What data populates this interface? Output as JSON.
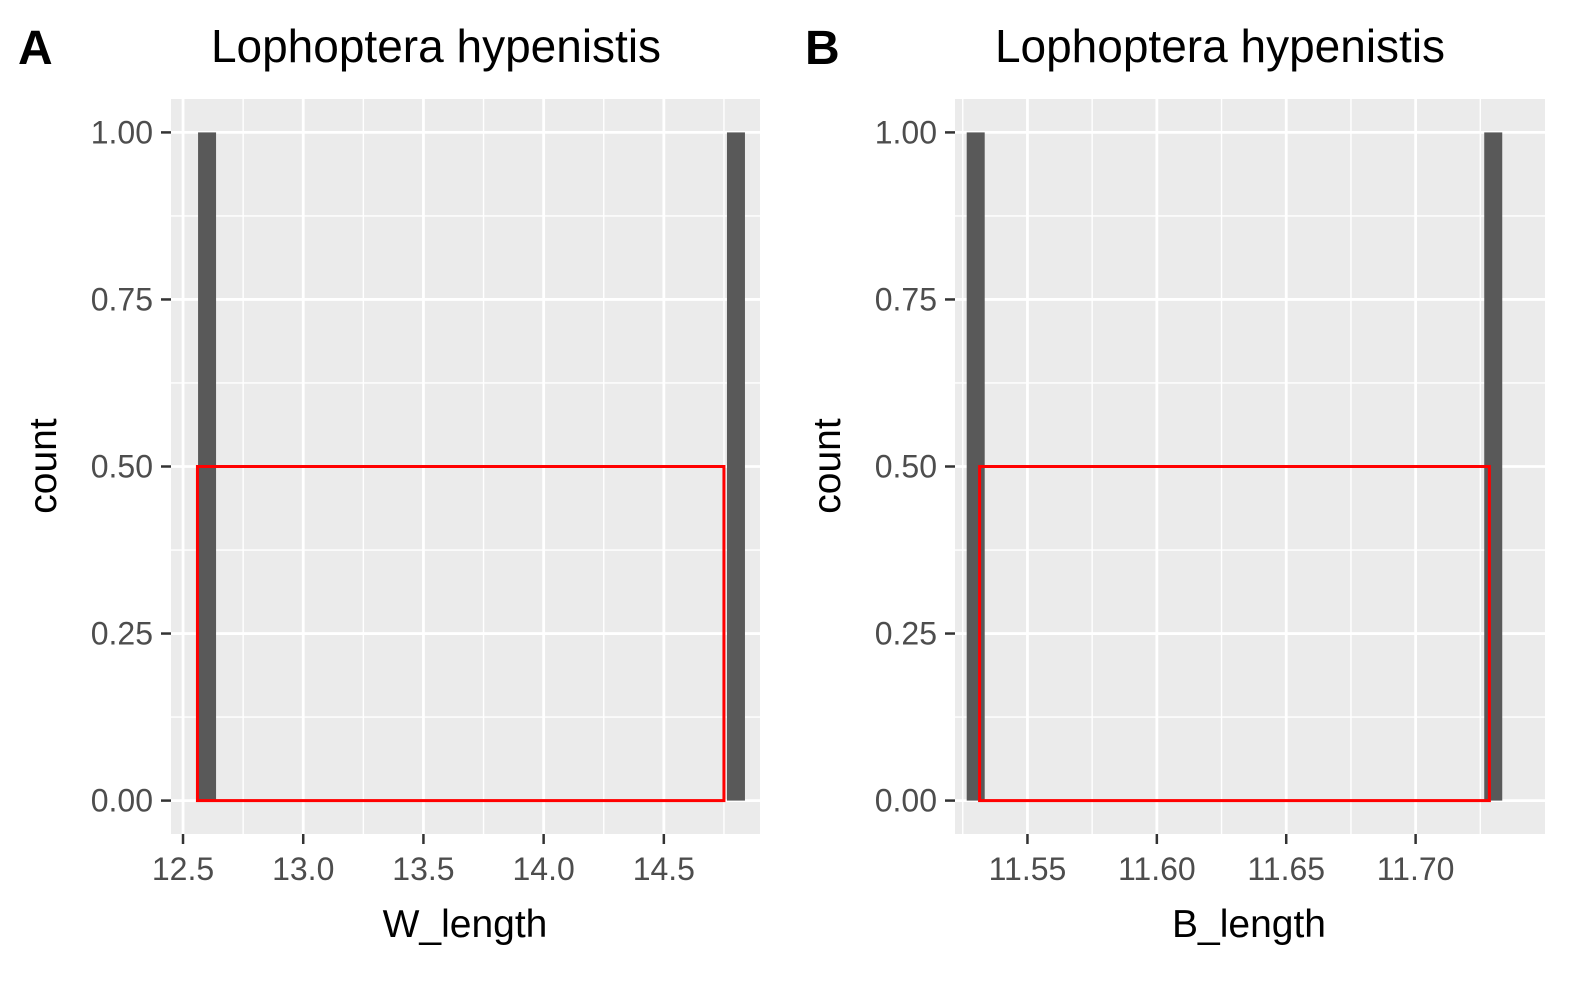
{
  "chart_data": [
    {
      "type": "bar",
      "panel_tag": "A",
      "title": "Lophoptera hypenistis",
      "xlabel": "W_length",
      "ylabel": "count",
      "x_ticks": [
        "12.5",
        "13.0",
        "13.5",
        "14.0",
        "14.5"
      ],
      "y_ticks": [
        "0.00",
        "0.25",
        "0.50",
        "0.75",
        "1.00"
      ],
      "xlim": [
        12.45,
        14.9
      ],
      "ylim": [
        -0.05,
        1.05
      ],
      "bars": [
        {
          "x": 12.6,
          "count": 1
        },
        {
          "x": 14.8,
          "count": 1
        }
      ],
      "highlight_box": {
        "x_from": 12.56,
        "x_to": 14.75,
        "y_from": 0,
        "y_to": 0.5,
        "color": "#ff0000"
      },
      "bar_color": "#595959",
      "panel_background": "#ebebeb",
      "grid": true
    },
    {
      "type": "bar",
      "panel_tag": "B",
      "title": "Lophoptera hypenistis",
      "xlabel": "B_length",
      "ylabel": "count",
      "x_ticks": [
        "11.55",
        "11.60",
        "11.65",
        "11.70"
      ],
      "y_ticks": [
        "0.00",
        "0.25",
        "0.50",
        "0.75",
        "1.00"
      ],
      "xlim": [
        11.522,
        11.75
      ],
      "ylim": [
        -0.05,
        1.05
      ],
      "bars": [
        {
          "x": 11.53,
          "count": 1
        },
        {
          "x": 11.73,
          "count": 1
        }
      ],
      "highlight_box": {
        "x_from": 11.5315,
        "x_to": 11.7285,
        "y_from": 0,
        "y_to": 0.5,
        "color": "#ff0000"
      },
      "bar_color": "#595959",
      "panel_background": "#ebebeb",
      "grid": true
    }
  ]
}
